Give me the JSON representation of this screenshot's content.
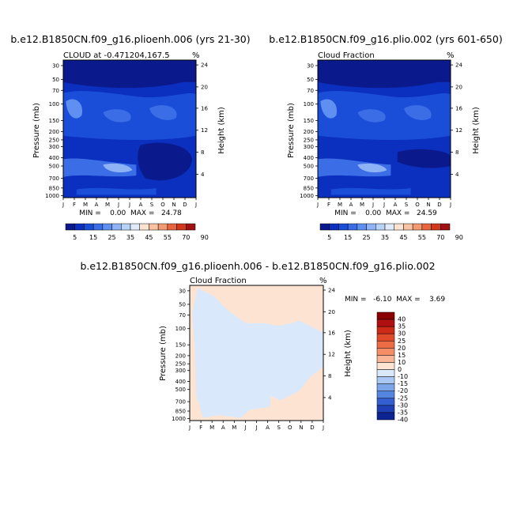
{
  "months": [
    "J",
    "F",
    "M",
    "A",
    "M",
    "J",
    "J",
    "A",
    "S",
    "O",
    "N",
    "D",
    "J"
  ],
  "pressure_ticks": [
    "30",
    "50",
    "70",
    "100",
    "150",
    "200",
    "250",
    "300",
    "400",
    "500",
    "700",
    "850",
    "1000"
  ],
  "height_ticks": [
    "24",
    "20",
    "16",
    "12",
    "8",
    "4"
  ],
  "ylabel_left": "Pressure (mb)",
  "ylabel_right": "Height (km)",
  "panels": [
    {
      "title": "b.e12.B1850CN.f09_g16.plioenh.006 (yrs 21-30)",
      "subtitle": "CLOUD at -0.471204,167.5",
      "units": "%",
      "stats": "MIN =    0.00  MAX =   24.78"
    },
    {
      "title": "b.e12.B1850CN.f09_g16.plio.002 (yrs 601-650)",
      "subtitle": "Cloud Fraction",
      "units": "%",
      "stats": "MIN =    0.00  MAX =   24.59"
    },
    {
      "title": "b.e12.B1850CN.f09_g16.plioenh.006 - b.e12.B1850CN.f09_g16.plio.002",
      "subtitle": "Cloud Fraction",
      "units": "%",
      "stats": "MIN =   -6.10  MAX =    3.69"
    }
  ],
  "colorbar_abs": {
    "labels": [
      "5",
      "15",
      "25",
      "35",
      "45",
      "55",
      "70",
      "90"
    ],
    "colors": [
      "#0a1a8c",
      "#0b2fbf",
      "#1a4ed8",
      "#3b6ee6",
      "#5f8ff0",
      "#8db2f5",
      "#b8d3f8",
      "#dfeafb",
      "#fde3d2",
      "#f9c2a2",
      "#f39a72",
      "#e8663f",
      "#d1381c",
      "#a01010"
    ]
  },
  "colorbar_diff": {
    "labels": [
      "40",
      "35",
      "30",
      "25",
      "20",
      "15",
      "10",
      "0",
      "-10",
      "-15",
      "-20",
      "-25",
      "-30",
      "-35",
      "-40"
    ],
    "colors": [
      "#8b0000",
      "#b01010",
      "#cc2a17",
      "#e04a2a",
      "#ed6b45",
      "#f58d68",
      "#f9b595",
      "#fde3d2",
      "#d9e8fa",
      "#a9c8f4",
      "#7ba6ec",
      "#5585e0",
      "#345fd0",
      "#1e3fb5",
      "#0c2393"
    ]
  },
  "chart_data": [
    {
      "type": "heatmap",
      "title": "b.e12.B1850CN.f09_g16.plioenh.006 (yrs 21-30)",
      "subtitle": "CLOUD at -0.471204,167.5",
      "xlabel": "",
      "ylabel": "Pressure (mb)",
      "ylabel_right": "Height (km)",
      "x": [
        "J",
        "F",
        "M",
        "A",
        "M",
        "J",
        "J",
        "A",
        "S",
        "O",
        "N",
        "D",
        "J"
      ],
      "y_pressure_mb": [
        30,
        50,
        70,
        100,
        150,
        200,
        250,
        300,
        400,
        500,
        700,
        850,
        1000
      ],
      "ylim_pressure_mb": [
        1000,
        30
      ],
      "units": "%",
      "min": 0.0,
      "max": 24.78
    },
    {
      "type": "heatmap",
      "title": "b.e12.B1850CN.f09_g16.plio.002 (yrs 601-650)",
      "subtitle": "Cloud Fraction",
      "xlabel": "",
      "ylabel": "Pressure (mb)",
      "ylabel_right": "Height (km)",
      "x": [
        "J",
        "F",
        "M",
        "A",
        "M",
        "J",
        "J",
        "A",
        "S",
        "O",
        "N",
        "D",
        "J"
      ],
      "y_pressure_mb": [
        30,
        50,
        70,
        100,
        150,
        200,
        250,
        300,
        400,
        500,
        700,
        850,
        1000
      ],
      "ylim_pressure_mb": [
        1000,
        30
      ],
      "units": "%",
      "min": 0.0,
      "max": 24.59
    },
    {
      "type": "heatmap",
      "title": "b.e12.B1850CN.f09_g16.plioenh.006 - b.e12.B1850CN.f09_g16.plio.002",
      "subtitle": "Cloud Fraction",
      "xlabel": "",
      "ylabel": "Pressure (mb)",
      "ylabel_right": "Height (km)",
      "x": [
        "J",
        "F",
        "M",
        "A",
        "M",
        "J",
        "J",
        "A",
        "S",
        "O",
        "N",
        "D",
        "J"
      ],
      "y_pressure_mb": [
        30,
        50,
        70,
        100,
        150,
        200,
        250,
        300,
        400,
        500,
        700,
        850,
        1000
      ],
      "ylim_pressure_mb": [
        1000,
        30
      ],
      "units": "%",
      "min": -6.1,
      "max": 3.69
    }
  ]
}
